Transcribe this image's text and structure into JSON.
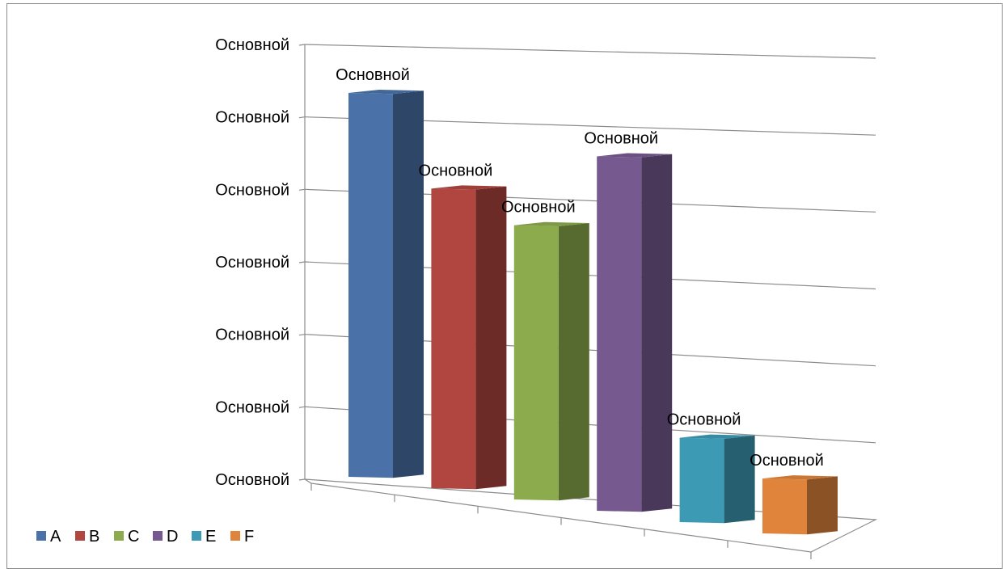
{
  "chart_data": {
    "type": "bar",
    "categories": [
      "A",
      "B",
      "C",
      "D",
      "E",
      "F"
    ],
    "values": [
      0.91,
      0.71,
      0.65,
      0.84,
      0.2,
      0.13
    ],
    "data_labels": [
      "Основной",
      "Основной",
      "Основной",
      "Основной",
      "Основной",
      "Основной"
    ],
    "y_tick_labels": [
      "Основной",
      "Основной",
      "Основной",
      "Основной",
      "Основной",
      "Основной",
      "Основной"
    ],
    "ylim": [
      0,
      1
    ],
    "grid": true,
    "three_d": true,
    "legend": {
      "position": "bottom-left",
      "items": [
        "A",
        "B",
        "C",
        "D",
        "E",
        "F"
      ]
    },
    "colors": [
      "#4a72a8",
      "#b0463f",
      "#8cab4d",
      "#765a8f",
      "#3d9ab4",
      "#e0843b"
    ]
  }
}
